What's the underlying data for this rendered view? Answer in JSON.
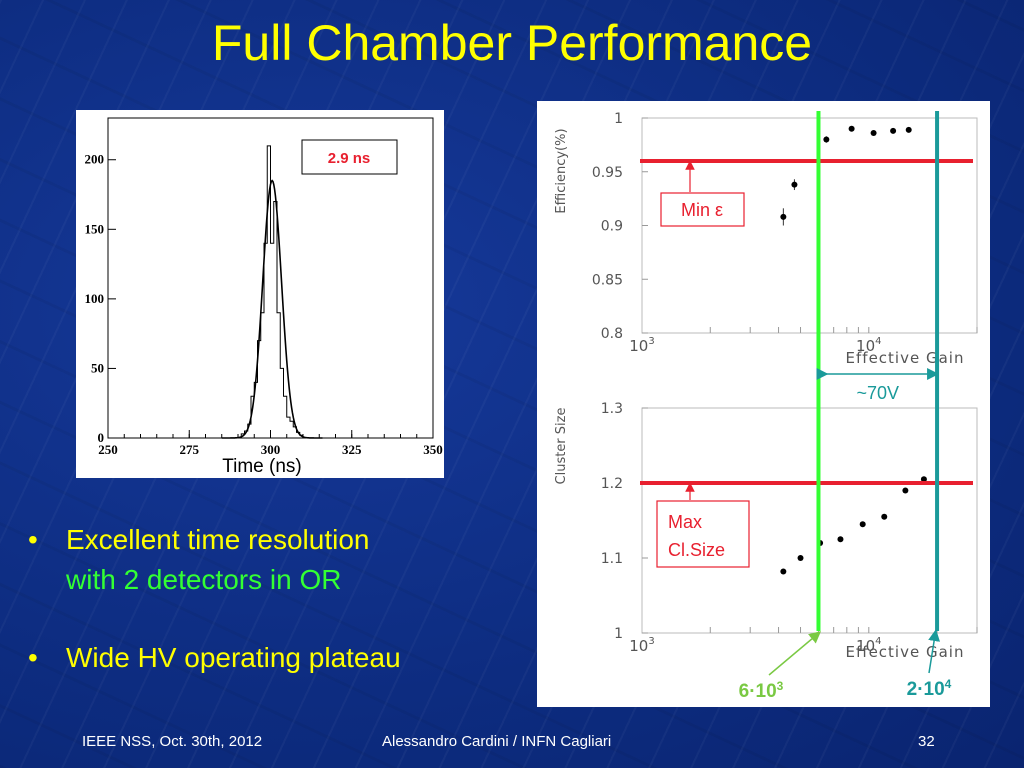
{
  "slide": {
    "title": "Full Chamber Performance",
    "colors": {
      "background": "#0d2c80",
      "title": "#ffff00",
      "accent_green": "#33ff33",
      "limit_red": "#e8202f"
    }
  },
  "bullets": [
    {
      "line1": "Excellent time resolution",
      "line2": "with 2 detectors in OR"
    },
    {
      "line1": "Wide HV operating plateau",
      "line2": ""
    }
  ],
  "footer": {
    "left": "IEEE NSS, Oct. 30th, 2012",
    "center": "Alessandro Cardini / INFN Cagliari",
    "page": "32"
  },
  "chart_data": [
    {
      "id": "time-histogram",
      "type": "line",
      "title": "",
      "xlabel": "Time  (ns)",
      "ylabel": "",
      "xlim": [
        250,
        350
      ],
      "ylim": [
        0,
        230
      ],
      "xticks": [
        "250",
        "275",
        "300",
        "325",
        "350"
      ],
      "yticks": [
        "0",
        "50",
        "100",
        "150",
        "200"
      ],
      "annotation": "2.9 ns",
      "series": [
        {
          "name": "histogram",
          "style": "step",
          "x": [
            290,
            291,
            292,
            293,
            294,
            295,
            296,
            297,
            298,
            299,
            300,
            301,
            302,
            303,
            304,
            305,
            306,
            307,
            308,
            309,
            310
          ],
          "values": [
            0,
            3,
            5,
            10,
            30,
            40,
            70,
            90,
            140,
            210,
            140,
            170,
            90,
            50,
            30,
            15,
            12,
            8,
            4,
            2,
            0
          ]
        },
        {
          "name": "gaussian fit",
          "style": "smooth",
          "mean": 300.5,
          "sigma": 2.9,
          "amplitude": 185
        }
      ]
    },
    {
      "id": "efficiency",
      "type": "scatter",
      "xscale": "log",
      "xlabel": "Effective Gain",
      "ylabel": "Efficiency(%)",
      "xlim": [
        1000,
        30000
      ],
      "ylim": [
        0.8,
        1.0
      ],
      "xticks": [
        "10",
        "10"
      ],
      "xtick_exponents": [
        "3",
        "4"
      ],
      "yticks": [
        "0.8",
        "0.85",
        "0.9",
        "0.95",
        "1"
      ],
      "x": [
        4200,
        4700,
        6500,
        8400,
        10500,
        12800,
        15000
      ],
      "values": [
        0.908,
        0.938,
        0.98,
        0.99,
        0.986,
        0.988,
        0.989
      ],
      "errors": [
        0.008,
        0.005,
        0.003,
        0.002,
        0.002,
        0.002,
        0.002
      ],
      "limit": {
        "value": 0.96,
        "label": "Min ε"
      }
    },
    {
      "id": "cluster-size",
      "type": "scatter",
      "xscale": "log",
      "xlabel": "Effective Gain",
      "ylabel": "Cluster Size",
      "xlim": [
        1000,
        30000
      ],
      "ylim": [
        1.0,
        1.3
      ],
      "xticks": [
        "10",
        "10"
      ],
      "xtick_exponents": [
        "3",
        "4"
      ],
      "yticks": [
        "1",
        "1.1",
        "1.2",
        "1.3"
      ],
      "x": [
        4200,
        5000,
        6100,
        7500,
        9400,
        11700,
        14500,
        17500
      ],
      "values": [
        1.082,
        1.1,
        1.12,
        1.125,
        1.145,
        1.155,
        1.19,
        1.205
      ],
      "limit": {
        "value": 1.2,
        "label_line1": "Max",
        "label_line2": "Cl.Size"
      }
    },
    {
      "id": "gain-markers",
      "type": "line",
      "markers": [
        {
          "x": 6000,
          "label": "6·10",
          "exponent": "3",
          "color": "#33ff33"
        },
        {
          "x": 20000,
          "label": "2·10",
          "exponent": "4",
          "color": "#1a9a9a"
        }
      ],
      "span_label": "~70V"
    }
  ]
}
